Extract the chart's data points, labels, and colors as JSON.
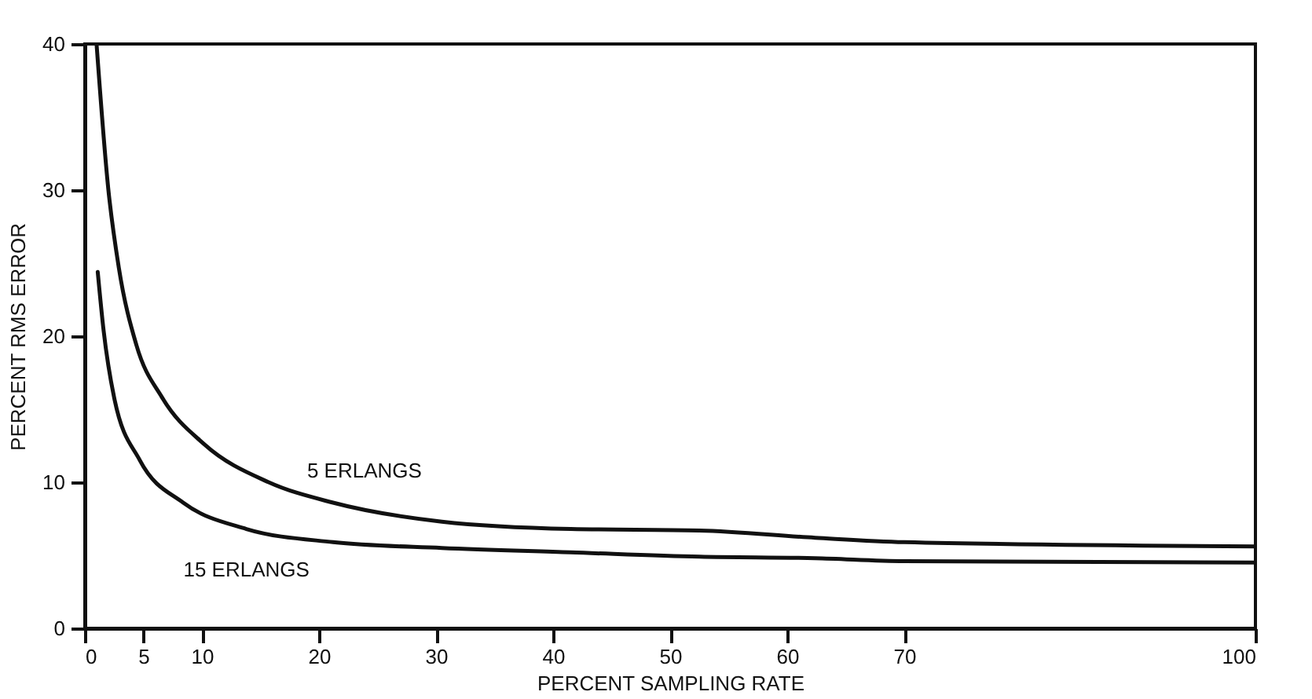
{
  "chart_data": {
    "type": "line",
    "xlabel": "PERCENT SAMPLING RATE",
    "ylabel": "PERCENT RMS ERROR",
    "xlim": [
      0,
      100
    ],
    "xticks": [
      0,
      5,
      10,
      20,
      30,
      40,
      50,
      60,
      70,
      100
    ],
    "ylim": [
      0,
      40
    ],
    "yticks": [
      0,
      10,
      20,
      30,
      40
    ],
    "marker": "none",
    "line_style": "solid",
    "series": [
      {
        "name": "5 ERLANGS",
        "color": "#111111",
        "x": [
          1,
          2,
          2.9,
          4.4,
          6.6,
          10.2,
          15.7,
          21.2,
          30.5,
          41.5,
          52.5,
          62.4,
          70,
          100
        ],
        "values": [
          40,
          30.1,
          24.7,
          19.4,
          15.8,
          12.6,
          10,
          8.6,
          7.3,
          6.8,
          6.7,
          6.2,
          5.9,
          5.6
        ]
      },
      {
        "name": "15 ERLANGS",
        "color": "#111111",
        "x": [
          1.1,
          1.6,
          2.5,
          4.7,
          8.4,
          13.8,
          21.2,
          30.5,
          41.5,
          52.5,
          62.4,
          70,
          100
        ],
        "values": [
          24.4,
          20.4,
          15.8,
          11.5,
          8.6,
          6.8,
          5.9,
          5.5,
          5.2,
          4.9,
          4.8,
          4.6,
          4.5
        ]
      }
    ]
  }
}
